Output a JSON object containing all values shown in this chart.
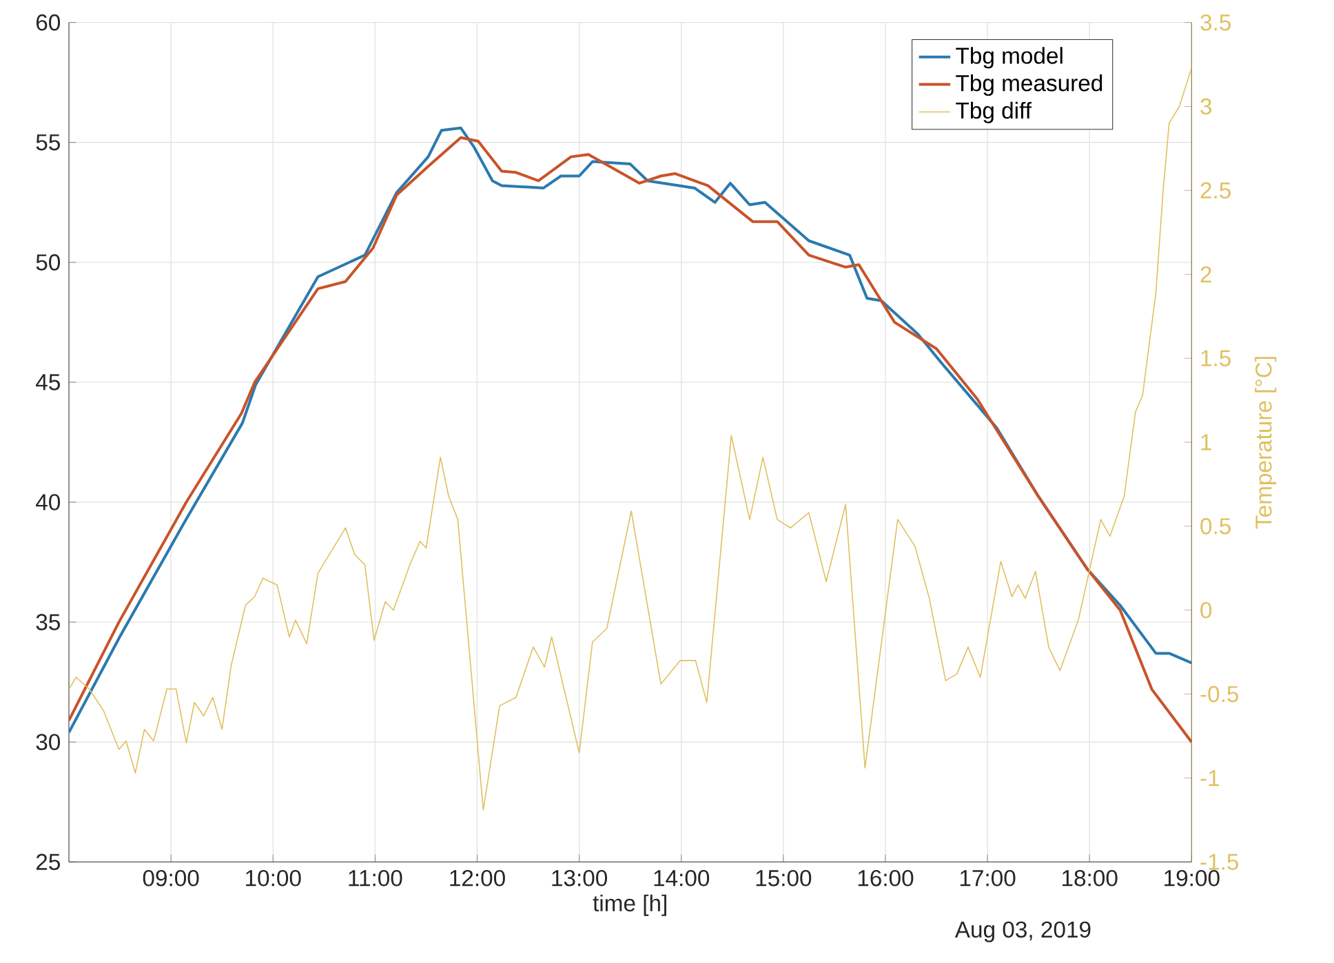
{
  "chart_data": {
    "type": "line",
    "xlabel": "time [h]",
    "y2label": "Temperature [°C]",
    "annotations": [
      "Aug 03, 2019"
    ],
    "xlim": [
      8.0,
      19.0
    ],
    "xticks": [
      {
        "value": 9,
        "label": "09:00"
      },
      {
        "value": 10,
        "label": "10:00"
      },
      {
        "value": 11,
        "label": "11:00"
      },
      {
        "value": 12,
        "label": "12:00"
      },
      {
        "value": 13,
        "label": "13:00"
      },
      {
        "value": 14,
        "label": "14:00"
      },
      {
        "value": 15,
        "label": "15:00"
      },
      {
        "value": 16,
        "label": "16:00"
      },
      {
        "value": 17,
        "label": "17:00"
      },
      {
        "value": 18,
        "label": "18:00"
      },
      {
        "value": 19,
        "label": "19:00"
      }
    ],
    "ylim": [
      25,
      60
    ],
    "yticks": [
      25,
      30,
      35,
      40,
      45,
      50,
      55,
      60
    ],
    "y2lim": [
      -1.5,
      3.5
    ],
    "y2ticks": [
      -1.5,
      -1,
      -0.5,
      0,
      0.5,
      1,
      1.5,
      2,
      2.5,
      3,
      3.5
    ],
    "grid": true,
    "legend": "top right",
    "marker": "none",
    "line_style": "solid",
    "series": [
      {
        "name": "Tbg model",
        "color": "#2a7aae",
        "x": [
          8.0,
          8.5,
          9.15,
          9.7,
          9.83,
          10.44,
          10.9,
          11.21,
          11.52,
          11.65,
          11.84,
          11.97,
          12.15,
          12.24,
          12.65,
          12.82,
          13.0,
          13.13,
          13.5,
          13.67,
          14.13,
          14.33,
          14.48,
          14.67,
          14.82,
          15.25,
          15.65,
          15.82,
          15.96,
          16.32,
          16.55,
          17.09,
          17.49,
          17.98,
          18.3,
          18.65,
          18.78,
          19.0
        ],
        "values": [
          30.4,
          34.4,
          39.3,
          43.3,
          44.9,
          49.4,
          50.3,
          52.9,
          54.4,
          55.5,
          55.6,
          54.8,
          53.4,
          53.2,
          53.1,
          53.6,
          53.6,
          54.2,
          54.1,
          53.4,
          53.1,
          52.5,
          53.3,
          52.4,
          52.5,
          50.9,
          50.3,
          48.5,
          48.4,
          47.0,
          45.8,
          43.1,
          40.3,
          37.2,
          35.7,
          33.7,
          33.7,
          33.3
        ]
      },
      {
        "name": "Tbg measured",
        "color": "#c9532a",
        "x": [
          8.0,
          8.49,
          9.15,
          9.69,
          9.82,
          10.44,
          10.71,
          10.98,
          11.21,
          11.52,
          11.84,
          12.01,
          12.24,
          12.38,
          12.6,
          12.92,
          13.09,
          13.59,
          13.8,
          13.94,
          14.26,
          14.7,
          14.94,
          15.25,
          15.61,
          15.74,
          16.09,
          16.5,
          16.9,
          17.49,
          17.98,
          18.3,
          18.61,
          19.0
        ],
        "values": [
          30.9,
          35.0,
          40.0,
          43.7,
          45.0,
          48.9,
          49.2,
          50.6,
          52.8,
          54.0,
          55.2,
          55.05,
          53.8,
          53.75,
          53.4,
          54.4,
          54.5,
          53.3,
          53.6,
          53.7,
          53.2,
          51.7,
          51.7,
          50.3,
          49.8,
          49.9,
          47.5,
          46.4,
          44.3,
          40.3,
          37.2,
          35.5,
          32.2,
          30.0
        ]
      },
      {
        "name": "Tbg diff",
        "color": "#e0c060",
        "axis": "y2",
        "x": [
          8.0,
          8.07,
          8.2,
          8.34,
          8.49,
          8.56,
          8.65,
          8.74,
          8.83,
          8.96,
          9.05,
          9.15,
          9.23,
          9.32,
          9.41,
          9.5,
          9.59,
          9.73,
          9.82,
          9.9,
          10.04,
          10.16,
          10.22,
          10.33,
          10.44,
          10.71,
          10.8,
          10.9,
          10.99,
          11.1,
          11.18,
          11.34,
          11.44,
          11.5,
          11.64,
          11.72,
          11.81,
          12.06,
          12.22,
          12.38,
          12.55,
          12.66,
          12.73,
          13.0,
          13.13,
          13.27,
          13.51,
          13.8,
          13.99,
          14.14,
          14.25,
          14.49,
          14.67,
          14.8,
          14.94,
          15.07,
          15.25,
          15.42,
          15.61,
          15.8,
          16.12,
          16.29,
          16.43,
          16.59,
          16.7,
          16.81,
          16.93,
          17.13,
          17.24,
          17.3,
          17.37,
          17.47,
          17.6,
          17.71,
          17.89,
          18.11,
          18.2,
          18.34,
          18.45,
          18.52,
          18.65,
          18.72,
          18.78,
          18.88,
          19.0
        ],
        "values": [
          -0.47,
          -0.4,
          -0.47,
          -0.6,
          -0.83,
          -0.78,
          -0.97,
          -0.71,
          -0.78,
          -0.47,
          -0.47,
          -0.79,
          -0.55,
          -0.63,
          -0.52,
          -0.71,
          -0.33,
          0.03,
          0.08,
          0.19,
          0.15,
          -0.16,
          -0.06,
          -0.2,
          0.22,
          0.49,
          0.33,
          0.27,
          -0.18,
          0.05,
          0.0,
          0.27,
          0.41,
          0.37,
          0.91,
          0.68,
          0.54,
          -1.19,
          -0.57,
          -0.52,
          -0.22,
          -0.34,
          -0.16,
          -0.85,
          -0.19,
          -0.11,
          0.59,
          -0.44,
          -0.3,
          -0.3,
          -0.55,
          1.04,
          0.54,
          0.91,
          0.54,
          0.49,
          0.58,
          0.17,
          0.63,
          -0.94,
          0.54,
          0.38,
          0.07,
          -0.42,
          -0.38,
          -0.22,
          -0.4,
          0.29,
          0.08,
          0.15,
          0.07,
          0.23,
          -0.22,
          -0.36,
          -0.06,
          0.54,
          0.44,
          0.68,
          1.18,
          1.28,
          1.89,
          2.49,
          2.9,
          3.0,
          3.23
        ]
      }
    ]
  }
}
